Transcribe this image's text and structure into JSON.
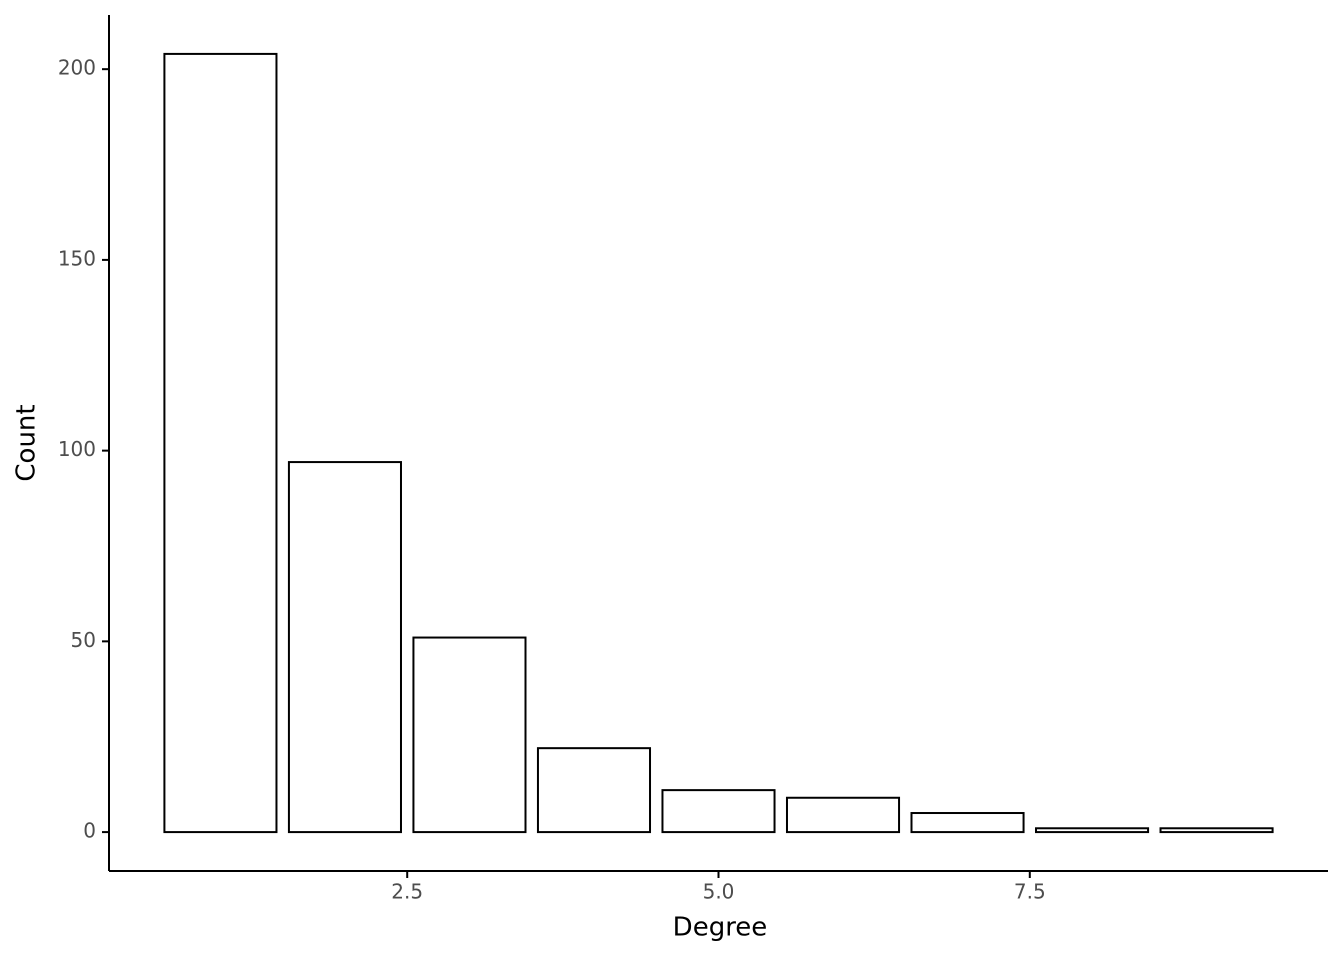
{
  "chart_data": {
    "type": "bar",
    "x_label": "Degree",
    "y_label": "Count",
    "x": [
      1,
      2,
      3,
      4,
      5,
      6,
      7,
      8,
      9
    ],
    "values": [
      204,
      97,
      51,
      22,
      11,
      9,
      5,
      1,
      1
    ],
    "color": "#ffffff",
    "edge_color": "#000000",
    "xlim": [
      0.105,
      9.895
    ],
    "xticks": [
      2.5,
      {
        "value": 5,
        "label": "5.0"
      },
      7.5
    ],
    "ylim": [
      -10.2,
      214.2
    ],
    "yticks": [
      0,
      50,
      100,
      150,
      200
    ]
  }
}
